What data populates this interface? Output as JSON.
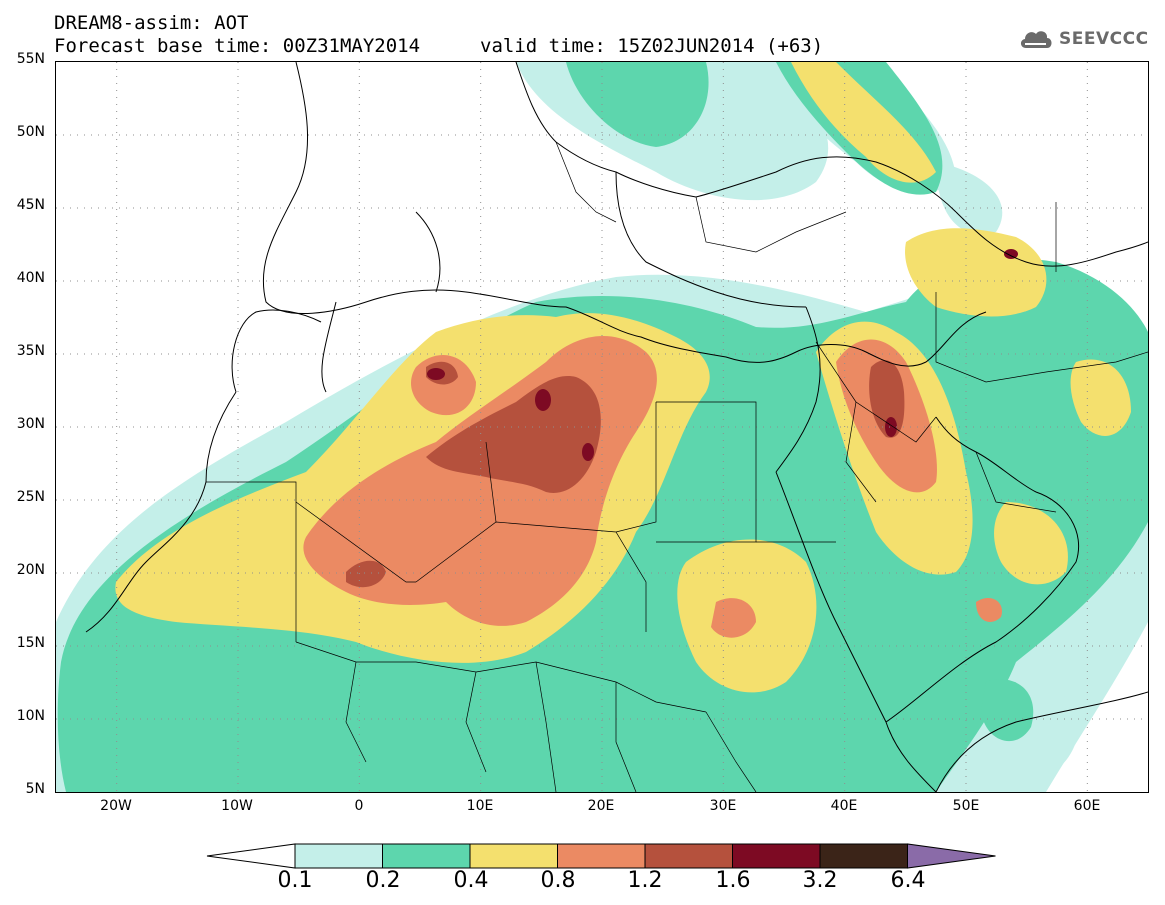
{
  "header": {
    "title": "DREAM8-assim: AOT",
    "base_time": "Forecast base time: 00Z31MAY2014",
    "valid_time": "valid time: 15Z02JUN2014 (+63)"
  },
  "logo": {
    "text": "SEEVCCC",
    "icon": "cloud-icon"
  },
  "map": {
    "lat_labels": [
      "55N",
      "50N",
      "45N",
      "40N",
      "35N",
      "30N",
      "25N",
      "20N",
      "15N",
      "10N",
      "5N"
    ],
    "lon_labels": [
      "20W",
      "10W",
      "0",
      "10E",
      "20E",
      "30E",
      "40E",
      "50E",
      "60E"
    ],
    "lon_range": [
      -25,
      65
    ],
    "lat_range": [
      5,
      55
    ],
    "grid": "dotted"
  },
  "colorbar": {
    "labels": [
      "0.1",
      "0.2",
      "0.4",
      "0.8",
      "1.2",
      "1.6",
      "3.2",
      "6.4"
    ],
    "colors": [
      "#ffffff",
      "#c4efe9",
      "#5dd6ad",
      "#f4e06e",
      "#eb8a63",
      "#b5513d",
      "#7d0a23",
      "#3b2418",
      "#8a6ba8"
    ]
  },
  "palette": {
    "c01": "#c4efe9",
    "c02": "#5dd6ad",
    "c04": "#f4e06e",
    "c08": "#eb8a63",
    "c12": "#b5513d",
    "c16": "#7d0a23"
  }
}
